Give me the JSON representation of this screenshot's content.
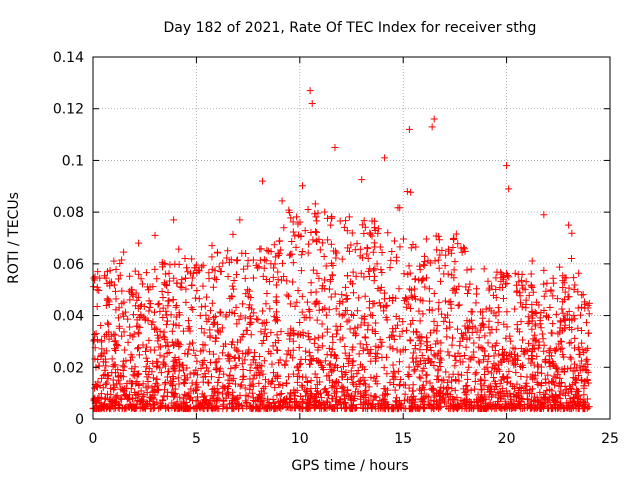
{
  "chart_data": {
    "type": "scatter",
    "title": "Day 182 of 2021, Rate Of TEC Index for receiver sthg",
    "xlabel": "GPS time / hours",
    "ylabel": "ROTI / TECUs",
    "xlim": [
      0,
      25
    ],
    "ylim": [
      0,
      0.14
    ],
    "xticks": [
      0,
      5,
      10,
      15,
      20,
      25
    ],
    "yticks": [
      0,
      0.02,
      0.04,
      0.06,
      0.08,
      0.1,
      0.12,
      0.14
    ],
    "xtick_labels": [
      "0",
      "5",
      "10",
      "15",
      "20",
      "25"
    ],
    "ytick_labels": [
      "0",
      "0.02",
      "0.04",
      "0.06",
      "0.08",
      "0.1",
      "0.12",
      "0.14"
    ],
    "grid": true,
    "marker": "+",
    "series": [
      {
        "name": "ROTI",
        "color": "#ff0000",
        "x_range": [
          0,
          24
        ],
        "description_points": [
          {
            "x": 10.5,
            "y": 0.127
          },
          {
            "x": 10.6,
            "y": 0.122
          },
          {
            "x": 16.5,
            "y": 0.116
          },
          {
            "x": 16.4,
            "y": 0.113
          },
          {
            "x": 15.3,
            "y": 0.112
          },
          {
            "x": 11.7,
            "y": 0.105
          },
          {
            "x": 14.1,
            "y": 0.101
          },
          {
            "x": 20.0,
            "y": 0.098
          },
          {
            "x": 8.2,
            "y": 0.092
          },
          {
            "x": 20.1,
            "y": 0.089
          },
          {
            "x": 15.2,
            "y": 0.088
          },
          {
            "x": 10.4,
            "y": 0.081
          },
          {
            "x": 21.8,
            "y": 0.079
          },
          {
            "x": 7.1,
            "y": 0.077
          },
          {
            "x": 3.9,
            "y": 0.077
          },
          {
            "x": 23.0,
            "y": 0.075
          },
          {
            "x": 3.0,
            "y": 0.071
          },
          {
            "x": 0.7,
            "y": 0.057
          },
          {
            "x": 0.1,
            "y": 0.055
          }
        ]
      }
    ]
  }
}
